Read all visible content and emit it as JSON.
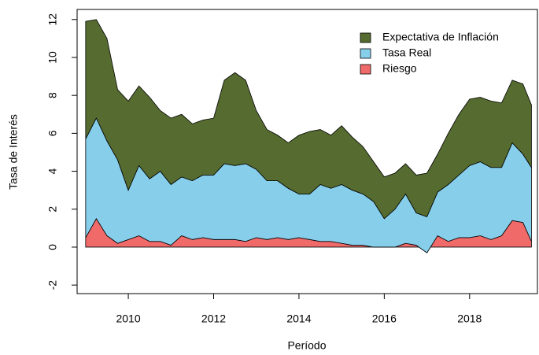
{
  "chart_data": {
    "type": "stacked_area",
    "x_label": "Período",
    "y_label": "Tasa de Interés",
    "x": [
      2009.0,
      2009.25,
      2009.5,
      2009.75,
      2010.0,
      2010.25,
      2010.5,
      2010.75,
      2011.0,
      2011.25,
      2011.5,
      2011.75,
      2012.0,
      2012.25,
      2012.5,
      2012.75,
      2013.0,
      2013.25,
      2013.5,
      2013.75,
      2014.0,
      2014.25,
      2014.5,
      2014.75,
      2015.0,
      2015.25,
      2015.5,
      2015.75,
      2016.0,
      2016.25,
      2016.5,
      2016.75,
      2017.0,
      2017.25,
      2017.5,
      2017.75,
      2018.0,
      2018.25,
      2018.5,
      2018.75,
      2019.0,
      2019.25,
      2019.45
    ],
    "series": [
      {
        "name": "Riesgo",
        "color": "#f06a6a",
        "values": [
          0.5,
          1.5,
          0.6,
          0.2,
          0.4,
          0.6,
          0.3,
          0.3,
          0.1,
          0.6,
          0.4,
          0.5,
          0.4,
          0.4,
          0.4,
          0.3,
          0.5,
          0.4,
          0.5,
          0.4,
          0.5,
          0.4,
          0.3,
          0.3,
          0.2,
          0.1,
          0.1,
          0.0,
          0.0,
          0.0,
          0.2,
          0.1,
          -0.3,
          0.6,
          0.3,
          0.5,
          0.5,
          0.6,
          0.4,
          0.6,
          1.4,
          1.3,
          0.3
        ]
      },
      {
        "name": "Tasa Real",
        "color": "#87ceeb",
        "values": [
          5.2,
          5.3,
          5.0,
          4.4,
          2.6,
          3.7,
          3.3,
          3.7,
          3.2,
          3.1,
          3.1,
          3.3,
          3.4,
          4.0,
          3.9,
          4.1,
          3.6,
          3.1,
          3.0,
          2.7,
          2.3,
          2.4,
          3.0,
          2.8,
          3.1,
          2.9,
          2.7,
          2.4,
          1.5,
          2.0,
          2.6,
          1.7,
          1.9,
          2.3,
          3.0,
          3.3,
          3.8,
          3.9,
          3.8,
          3.6,
          4.1,
          3.6,
          3.9
        ]
      },
      {
        "name": "Expectativa de Inflación",
        "color": "#556b2f",
        "values": [
          6.2,
          5.2,
          5.4,
          3.7,
          4.7,
          4.2,
          4.3,
          3.2,
          3.5,
          3.3,
          3.0,
          2.9,
          3.0,
          4.4,
          4.9,
          4.4,
          3.1,
          2.7,
          2.4,
          2.4,
          3.1,
          3.3,
          2.9,
          2.8,
          3.1,
          2.8,
          2.5,
          2.1,
          2.2,
          1.9,
          1.6,
          2.0,
          2.3,
          2.0,
          2.7,
          3.2,
          3.5,
          3.4,
          3.5,
          3.4,
          3.3,
          3.7,
          3.3
        ]
      }
    ],
    "xlim": [
      2008.8,
      2019.59
    ],
    "ylim": [
      -2.45,
      12.53
    ],
    "xticks": [
      2010,
      2012,
      2014,
      2016,
      2018
    ],
    "yticks": [
      -2,
      0,
      2,
      4,
      6,
      8,
      10,
      12
    ],
    "legend_position": "top-right"
  }
}
